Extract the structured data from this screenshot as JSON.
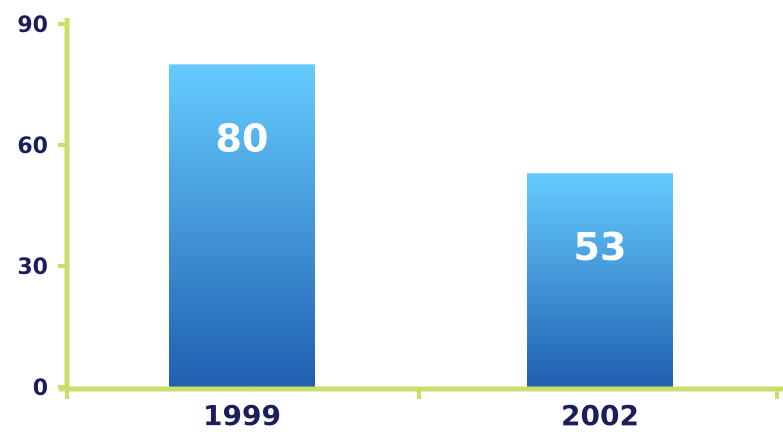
{
  "chart_data": {
    "type": "bar",
    "categories": [
      "1999",
      "2002"
    ],
    "values": [
      80,
      53
    ],
    "data_labels": [
      "80",
      "53"
    ],
    "title": "",
    "xlabel": "",
    "ylabel": "",
    "ylim": [
      0,
      90
    ],
    "yticks": [
      "0",
      "30",
      "60",
      "90"
    ],
    "grid": false,
    "legend": "none",
    "colors": {
      "bar_top": "#66ccff",
      "bar_bottom": "#1f5fb0",
      "axis": "#c8e06a",
      "tick_text": "#1a1f5c",
      "data_label_text": "#ffffff"
    }
  }
}
